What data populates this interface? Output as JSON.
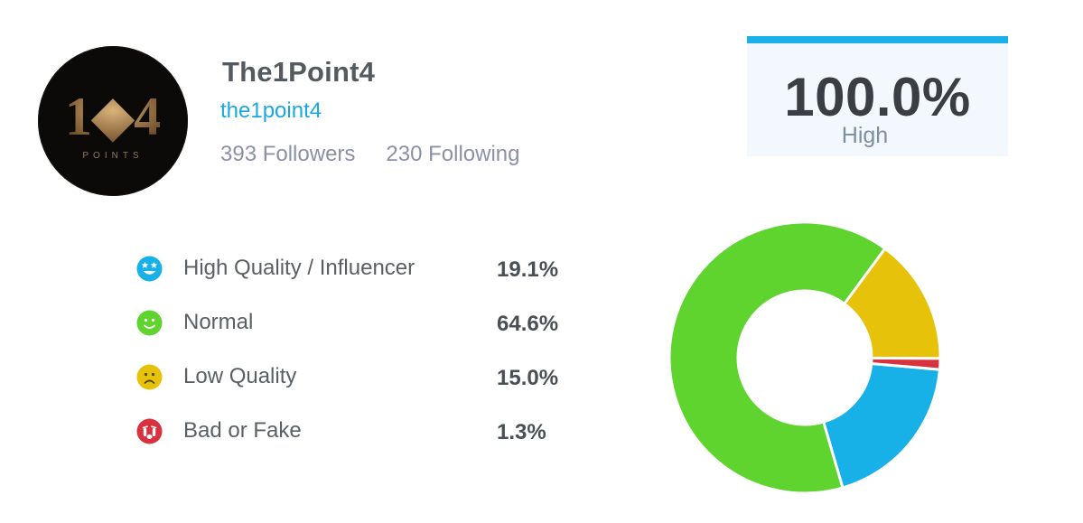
{
  "profile": {
    "display_name": "The1Point4",
    "username": "the1point4",
    "followers": "393 Followers",
    "following": "230 Following",
    "avatar_text": "1◆4",
    "avatar_subtext": "POINTS"
  },
  "score": {
    "value": "100.0%",
    "label": "High",
    "accent_color": "#1cb0ea"
  },
  "chart_data": {
    "type": "pie",
    "donut": true,
    "categories": [
      "High Quality / Influencer",
      "Normal",
      "Low Quality",
      "Bad or Fake"
    ],
    "values": [
      19.1,
      64.6,
      15.0,
      1.3
    ],
    "value_labels": [
      "19.1%",
      "64.6%",
      "15.0%",
      "1.3%"
    ],
    "colors": [
      "#17b1e8",
      "#5fd42f",
      "#e7c20b",
      "#d8323f"
    ],
    "icons": [
      "star-eyes-face-icon",
      "smile-face-icon",
      "frown-face-icon",
      "crying-face-icon"
    ]
  }
}
